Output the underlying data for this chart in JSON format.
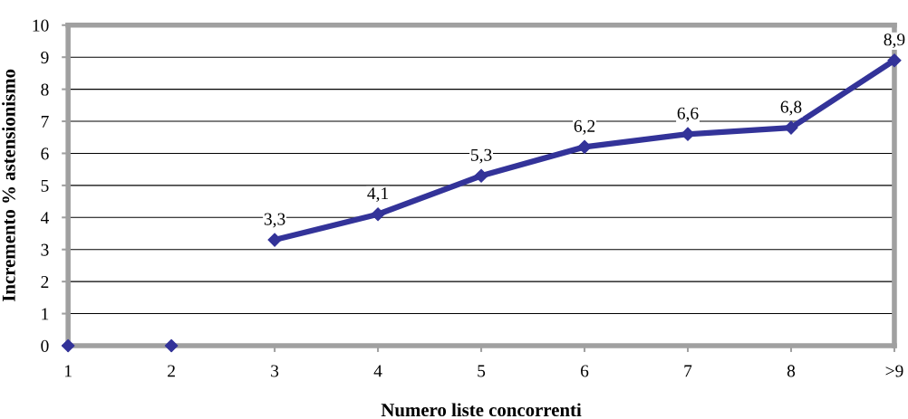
{
  "chart_data": {
    "type": "line",
    "xlabel": "Numero liste concorrenti",
    "ylabel": "Incremento % astensionismo",
    "categories": [
      "1",
      "2",
      "3",
      "4",
      "5",
      "6",
      "7",
      "8",
      ">9"
    ],
    "series": [
      {
        "type": "scatter",
        "color": "#333399",
        "values": [
          0,
          0,
          null,
          null,
          null,
          null,
          null,
          null,
          null
        ]
      },
      {
        "color": "#333399",
        "values": [
          null,
          null,
          3.3,
          4.1,
          5.3,
          6.2,
          6.6,
          6.8,
          8.9
        ],
        "value_labels": [
          null,
          null,
          "3,3",
          "4,1",
          "5,3",
          "6,2",
          "6,6",
          "6,8",
          "8,9"
        ]
      }
    ],
    "ylim": [
      0,
      10
    ],
    "yticks": [
      0,
      1,
      2,
      3,
      4,
      5,
      6,
      7,
      8,
      9,
      10
    ],
    "grid": "y",
    "marker": "diamond",
    "legend": false
  }
}
